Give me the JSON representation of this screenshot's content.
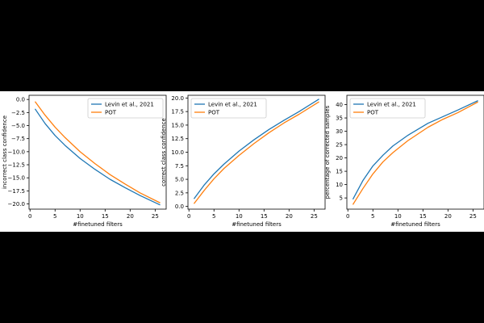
{
  "chart_data": [
    {
      "type": "line",
      "xlabel": "#finetuned filters",
      "ylabel": "incorrect class confidence",
      "xlim": [
        -0.2,
        27.2
      ],
      "ylim": [
        -21.0,
        0.8
      ],
      "xticks": [
        0,
        5,
        10,
        15,
        20,
        25
      ],
      "yticks": [
        0.0,
        -2.5,
        -5.0,
        -7.5,
        -10.0,
        -12.5,
        -15.0,
        -17.5,
        -20.0
      ],
      "ytick_decimals": 1,
      "legend_loc": "top-right",
      "grid": false,
      "series": [
        {
          "name": "Levin et al., 2021",
          "color": "#1f77b4",
          "x": [
            1,
            3,
            5,
            7,
            10,
            13,
            16,
            19,
            22,
            26
          ],
          "y": [
            -1.8,
            -4.6,
            -6.9,
            -8.8,
            -11.3,
            -13.4,
            -15.3,
            -16.9,
            -18.4,
            -20.2
          ]
        },
        {
          "name": "POT",
          "color": "#ff7f0e",
          "x": [
            1,
            3,
            5,
            7,
            10,
            13,
            16,
            19,
            22,
            26
          ],
          "y": [
            -0.4,
            -3.0,
            -5.3,
            -7.3,
            -10.0,
            -12.3,
            -14.4,
            -16.2,
            -17.9,
            -19.8
          ]
        }
      ]
    },
    {
      "type": "line",
      "xlabel": "#finetuned filters",
      "ylabel": "correct class confidence",
      "xlim": [
        -0.2,
        27.2
      ],
      "ylim": [
        -0.5,
        20.5
      ],
      "xticks": [
        0,
        5,
        10,
        15,
        20,
        25
      ],
      "yticks": [
        0.0,
        2.5,
        5.0,
        7.5,
        10.0,
        12.5,
        15.0,
        17.5,
        20.0
      ],
      "ytick_decimals": 1,
      "legend_loc": "top-left",
      "grid": false,
      "series": [
        {
          "name": "Levin et al., 2021",
          "color": "#1f77b4",
          "x": [
            1,
            3,
            5,
            7,
            10,
            13,
            16,
            19,
            22,
            26
          ],
          "y": [
            1.4,
            3.9,
            6.0,
            7.8,
            10.2,
            12.3,
            14.2,
            15.9,
            17.5,
            19.8
          ]
        },
        {
          "name": "POT",
          "color": "#ff7f0e",
          "x": [
            1,
            3,
            5,
            7,
            10,
            13,
            16,
            19,
            22,
            26
          ],
          "y": [
            0.5,
            2.9,
            5.1,
            7.0,
            9.4,
            11.6,
            13.6,
            15.4,
            17.0,
            19.3
          ]
        }
      ]
    },
    {
      "type": "line",
      "xlabel": "#finetuned filters",
      "ylabel": "percentage of corrected samples",
      "xlim": [
        -0.2,
        27.2
      ],
      "ylim": [
        0.8,
        43.5
      ],
      "xticks": [
        0,
        5,
        10,
        15,
        20,
        25
      ],
      "yticks": [
        5,
        10,
        15,
        20,
        25,
        30,
        35,
        40
      ],
      "ytick_decimals": 0,
      "legend_loc": "top-left",
      "grid": false,
      "series": [
        {
          "name": "Levin et al., 2021",
          "color": "#1f77b4",
          "x": [
            1,
            3,
            5,
            7,
            9,
            12,
            16,
            19,
            22,
            26
          ],
          "y": [
            4.5,
            11.5,
            17.0,
            21.0,
            24.5,
            28.5,
            33.0,
            35.5,
            38.0,
            41.5
          ]
        },
        {
          "name": "POT",
          "color": "#ff7f0e",
          "x": [
            1,
            3,
            5,
            7,
            9,
            12,
            16,
            19,
            22,
            26
          ],
          "y": [
            2.5,
            8.5,
            14.0,
            18.5,
            22.0,
            26.5,
            31.5,
            34.5,
            37.0,
            41.0
          ]
        }
      ]
    }
  ]
}
